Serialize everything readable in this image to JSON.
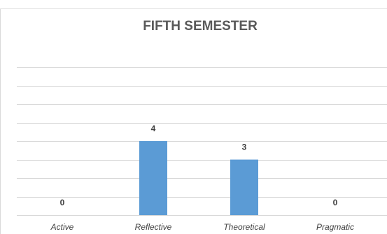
{
  "chart_data": {
    "type": "bar",
    "title": "FIFTH SEMESTER",
    "categories": [
      "Active",
      "Reflective",
      "Theoretical",
      "Pragmatic"
    ],
    "values": [
      0,
      4,
      3,
      0
    ],
    "xlabel": "",
    "ylabel": "",
    "ylim": [
      0,
      8
    ],
    "grid": true,
    "legend": "none",
    "bar_color": "#5b9bd5",
    "gridline_color": "#d9d9d9"
  }
}
